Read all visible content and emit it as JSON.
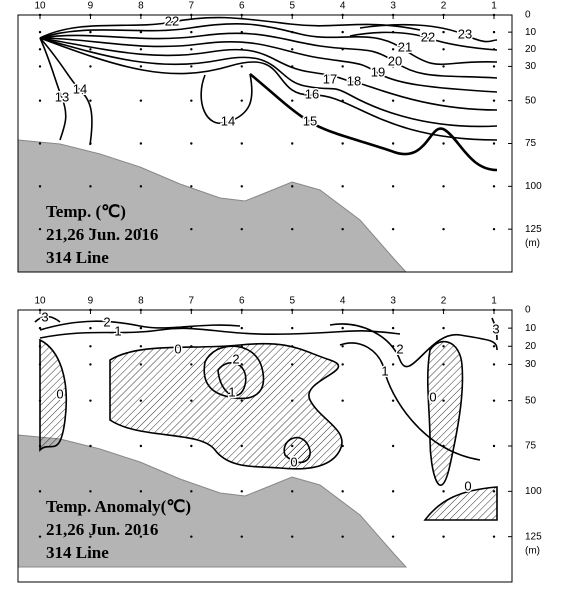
{
  "chart_data": [
    {
      "type": "contour",
      "annotations": [
        "Temp. (℃)",
        "21,26 Jun. 2016",
        "314 Line"
      ],
      "categories": [
        "10",
        "9",
        "8",
        "7",
        "6",
        "5",
        "4",
        "3",
        "2",
        "1"
      ],
      "ylabel": "(m)",
      "ylim": [
        0,
        150
      ],
      "yticks": [
        0,
        10,
        20,
        30,
        50,
        75,
        100,
        125
      ],
      "levels": [
        22,
        21,
        22,
        23,
        20,
        19,
        18,
        17,
        16,
        15,
        14,
        14,
        13
      ]
    },
    {
      "type": "contour",
      "annotations": [
        "Temp. Anomaly(℃)",
        "21,26 Jun. 2016",
        "314 Line"
      ],
      "categories": [
        "10",
        "9",
        "8",
        "7",
        "6",
        "5",
        "4",
        "3",
        "2",
        "1"
      ],
      "ylabel": "(m)",
      "ylim": [
        0,
        150
      ],
      "yticks": [
        0,
        10,
        20,
        30,
        50,
        75,
        100,
        125
      ],
      "levels": [
        3,
        2,
        1,
        0,
        2,
        1,
        0,
        0,
        2,
        1,
        3,
        0,
        0
      ]
    }
  ]
}
